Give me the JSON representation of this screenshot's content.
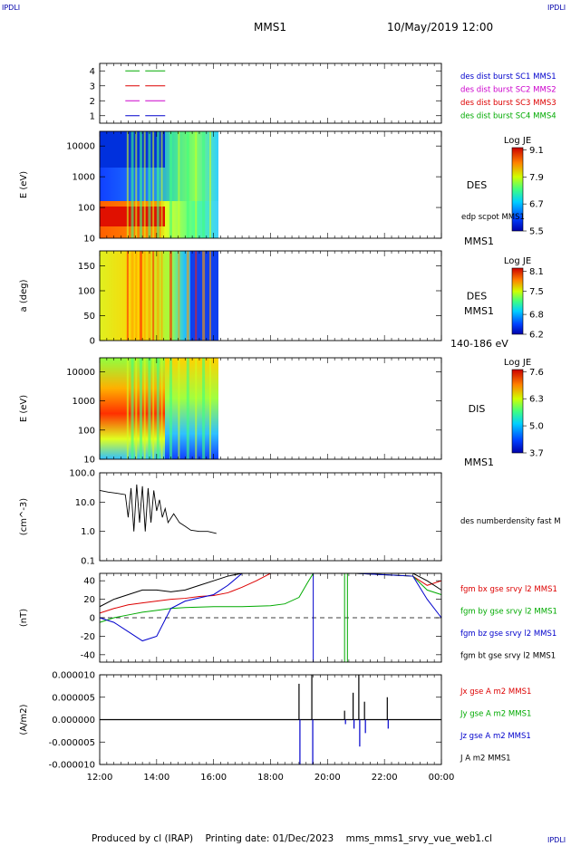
{
  "corner_labels": {
    "top_left": "IPDLI",
    "top_right": "IPDLI",
    "bottom_right": "IPDLI"
  },
  "header": {
    "title": "MMS1",
    "datetime": "10/May/2019 12:00"
  },
  "footer": {
    "text": "Produced by cl (IRAP)    Printing date: 01/Dec/2023    mms_mms1_srvy_vue_web1.cl"
  },
  "colors": {
    "mms1": "#0000cc",
    "mms2": "#cc00cc",
    "mms3": "#dd0000",
    "mms4": "#00aa00",
    "black": "#000000"
  },
  "chart_data": [
    {
      "type": "line",
      "panel": "burst-availability",
      "y_ticks": [
        "1",
        "2",
        "3",
        "4"
      ],
      "ylim": [
        0.5,
        4.5
      ],
      "legend": [
        "des dist burst SC1 MMS1",
        "des dist burst SC2 MMS2",
        "des dist burst SC3 MMS3",
        "des dist burst SC4 MMS4"
      ],
      "series": [
        {
          "name": "des dist burst SC1 MMS1",
          "level": 1,
          "segments": [
            [
              12.9,
              13.4
            ],
            [
              13.6,
              14.3
            ]
          ]
        },
        {
          "name": "des dist burst SC2 MMS2",
          "level": 2,
          "segments": [
            [
              12.9,
              13.4
            ],
            [
              13.6,
              14.3
            ]
          ]
        },
        {
          "name": "des dist burst SC3 MMS3",
          "level": 3,
          "segments": [
            [
              12.9,
              13.4
            ],
            [
              13.6,
              14.3
            ]
          ]
        },
        {
          "name": "des dist burst SC4 MMS4",
          "level": 4,
          "segments": [
            [
              12.9,
              13.4
            ],
            [
              13.6,
              14.3
            ]
          ]
        }
      ]
    },
    {
      "type": "heatmap",
      "panel": "des-energy",
      "ylabel": "E (eV)",
      "y_ticks": [
        "10",
        "100",
        "1000",
        "10000"
      ],
      "yscale": "log",
      "ylim": [
        10,
        30000
      ],
      "data_xlim": [
        12,
        16.15
      ],
      "label": "DES",
      "sublabel": "edp scpot MMS1",
      "bottom_label": "MMS1",
      "colorbar": {
        "title": "Log JE",
        "ticks": [
          "5.5",
          "6.7",
          "7.9",
          "9.1"
        ],
        "range": [
          5.5,
          9.2
        ]
      }
    },
    {
      "type": "heatmap",
      "panel": "des-pitch",
      "ylabel": "a (deg)",
      "y_ticks": [
        "0",
        "50",
        "100",
        "150"
      ],
      "ylim": [
        0,
        180
      ],
      "data_xlim": [
        12,
        16.15
      ],
      "label": "DES",
      "sublabel": "MMS1",
      "bottom_label": "140-186 eV",
      "colorbar": {
        "title": "Log JE",
        "ticks": [
          "6.2",
          "6.8",
          "7.5",
          "8.1"
        ],
        "range": [
          6.2,
          8.2
        ]
      }
    },
    {
      "type": "heatmap",
      "panel": "dis-energy",
      "ylabel": "E (eV)",
      "y_ticks": [
        "10",
        "100",
        "1000",
        "10000"
      ],
      "yscale": "log",
      "ylim": [
        10,
        30000
      ],
      "data_xlim": [
        12,
        16.15
      ],
      "label": "DIS",
      "bottom_label": "MMS1",
      "colorbar": {
        "title": "Log JE",
        "ticks": [
          "3.7",
          "5.0",
          "6.3",
          "7.6"
        ],
        "range": [
          3.7,
          7.7
        ]
      }
    },
    {
      "type": "line",
      "panel": "density",
      "ylabel": "(cm^-3)",
      "y_ticks": [
        "0.1",
        "1.0",
        "10.0",
        "100.0"
      ],
      "yscale": "log",
      "ylim": [
        0.1,
        100
      ],
      "legend": [
        "des numberdensity fast M"
      ],
      "series": [
        {
          "name": "des numberdensity fast M",
          "x": [
            12.0,
            12.3,
            12.6,
            12.9,
            13.0,
            13.1,
            13.2,
            13.3,
            13.4,
            13.5,
            13.6,
            13.7,
            13.8,
            13.9,
            14.0,
            14.1,
            14.2,
            14.3,
            14.4,
            14.6,
            14.8,
            15.0,
            15.2,
            15.5,
            15.8,
            16.0,
            16.1
          ],
          "y": [
            25,
            22,
            20,
            18,
            3,
            30,
            1,
            40,
            2,
            35,
            1,
            30,
            2,
            25,
            5,
            12,
            3,
            6,
            2,
            4,
            2,
            1.5,
            1.1,
            1.0,
            1.0,
            0.9,
            0.85
          ]
        }
      ]
    },
    {
      "type": "line",
      "panel": "magnetic-field",
      "ylabel": "(nT)",
      "y_ticks": [
        "-40",
        "-20",
        "0",
        "20",
        "40"
      ],
      "ylim": [
        -48,
        48
      ],
      "legend": [
        "fgm bx gse srvy l2 MMS1",
        "fgm by gse srvy l2 MMS1",
        "fgm bz gse srvy l2 MMS1",
        "fgm bt gse srvy l2 MMS1"
      ],
      "series": [
        {
          "name": "fgm bx gse srvy l2 MMS1",
          "x": [
            12.0,
            12.5,
            13.0,
            13.5,
            14.0,
            14.5,
            15.0,
            15.5,
            16.0,
            16.5,
            17.0,
            17.5,
            18.0,
            21.0,
            23.0,
            23.5,
            24.0
          ],
          "y": [
            5,
            10,
            14,
            16,
            18,
            20,
            21,
            23,
            24,
            27,
            33,
            40,
            48,
            48,
            45,
            35,
            40
          ]
        },
        {
          "name": "fgm by gse srvy l2 MMS1",
          "x": [
            12.0,
            12.5,
            13.0,
            13.5,
            14.0,
            14.5,
            15.0,
            16.0,
            17.0,
            18.0,
            18.5,
            19.0,
            19.3,
            19.5,
            21.0,
            23.0,
            23.5,
            24.0
          ],
          "y": [
            -5,
            0,
            3,
            6,
            8,
            10,
            11,
            12,
            12,
            13,
            15,
            22,
            38,
            48,
            48,
            45,
            30,
            25
          ]
        },
        {
          "name": "fgm bz gse srvy l2 MMS1",
          "x": [
            12.0,
            12.5,
            13.0,
            13.5,
            14.0,
            14.5,
            15.0,
            16.0,
            16.5,
            17.0,
            21.0,
            23.0,
            23.5,
            24.0
          ],
          "y": [
            0,
            -5,
            -15,
            -25,
            -20,
            10,
            18,
            25,
            35,
            48,
            48,
            45,
            20,
            0
          ]
        },
        {
          "name": "fgm bt gse srvy l2 MMS1",
          "x": [
            12.0,
            12.5,
            13.0,
            13.5,
            14.0,
            14.5,
            15.0,
            15.5,
            16.0,
            16.5,
            17.0,
            21.0,
            23.0,
            23.5,
            24.0
          ],
          "y": [
            12,
            20,
            25,
            30,
            30,
            28,
            30,
            35,
            40,
            45,
            48,
            48,
            48,
            40,
            30
          ]
        }
      ]
    },
    {
      "type": "line",
      "panel": "current-density",
      "ylabel": "(A/m2)",
      "y_ticks": [
        "-0.000010",
        "-0.000005",
        "0.000000",
        "0.000005",
        "0.000010"
      ],
      "ylim": [
        -1e-05,
        1e-05
      ],
      "legend": [
        "Jx gse A m2 MMS1",
        "Jy gse A m2 MMS1",
        "Jz gse A m2 MMS1",
        "J A m2 MMS1"
      ],
      "x_ticks": [
        "12:00",
        "14:00",
        "16:00",
        "18:00",
        "20:00",
        "22:00",
        "00:00"
      ],
      "xlim": [
        12,
        24
      ],
      "spikes": [
        [
          19.0,
          8e-06,
          -1e-05
        ],
        [
          19.45,
          1e-05,
          -1e-05
        ],
        [
          20.6,
          2e-06,
          -1e-06
        ],
        [
          20.9,
          6e-06,
          -2e-06
        ],
        [
          21.1,
          1e-05,
          -6e-06
        ],
        [
          21.3,
          4e-06,
          -3e-06
        ],
        [
          22.1,
          5e-06,
          -2e-06
        ]
      ]
    }
  ]
}
